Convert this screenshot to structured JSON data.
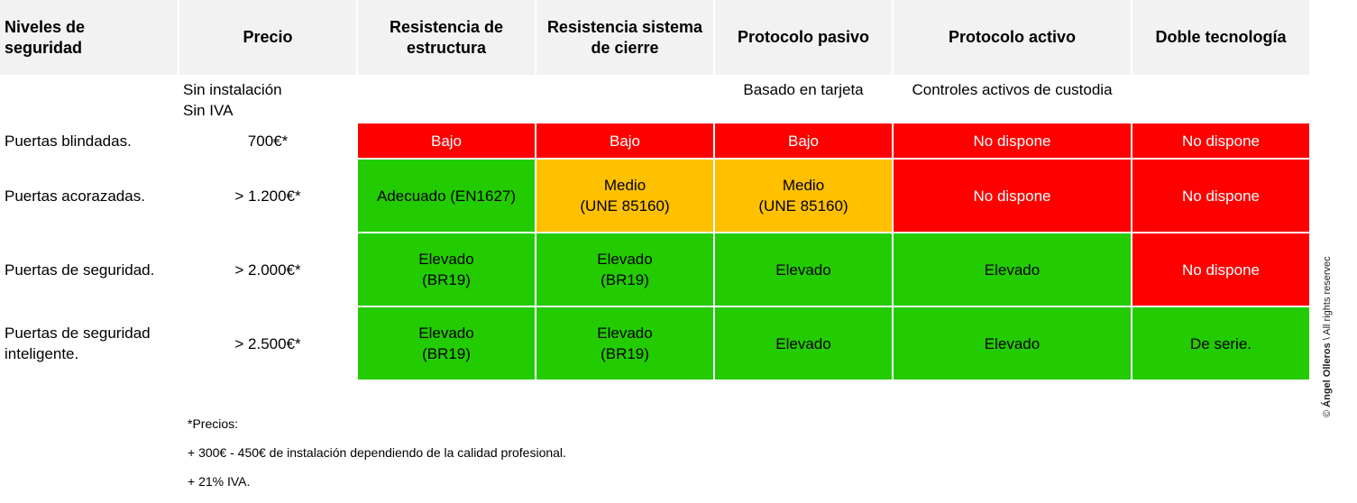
{
  "headers": {
    "level": "Niveles de\nseguridad",
    "price": "Precio",
    "structure": "Resistencia de\nestructura",
    "lock": "Resistencia sistema\nde cierre",
    "passive": "Protocolo pasivo",
    "active": "Protocolo activo",
    "dual": "Doble tecnología"
  },
  "subheaders": {
    "price": "Sin instalación\nSin IVA",
    "passive": "Basado en tarjeta",
    "active": "Controles activos de custodia"
  },
  "rows": [
    {
      "level": "Puertas blindadas.",
      "price": "700€*",
      "structure": "Bajo",
      "lock": "Bajo",
      "passive": "Bajo",
      "active": "No dispone",
      "dual": "No dispone"
    },
    {
      "level": "Puertas acorazadas.",
      "price": "> 1.200€*",
      "structure": "Adecuado (EN1627)",
      "lock": "Medio\n(UNE 85160)",
      "passive": "Medio\n(UNE 85160)",
      "active": "No dispone",
      "dual": "No dispone"
    },
    {
      "level": "Puertas de seguridad.",
      "price": "> 2.000€*",
      "structure": "Elevado\n(BR19)",
      "lock": "Elevado\n(BR19)",
      "passive": "Elevado",
      "active": "Elevado",
      "dual": "No dispone"
    },
    {
      "level": "Puertas de seguridad\ninteligente.",
      "price": "> 2.500€*",
      "structure": "Elevado\n(BR19)",
      "lock": "Elevado\n(BR19)",
      "passive": "Elevado",
      "active": "Elevado",
      "dual": "De serie."
    }
  ],
  "notes": {
    "line1": "*Precios:",
    "line2": "+ 300€ - 450€ de instalación dependiendo de la calidad profesional.",
    "line3": "+ 21% IVA."
  },
  "copyright": {
    "symbol": "© ",
    "author": "Ángel Olleros",
    "rest": " \\ All rights reservec"
  },
  "colors": {
    "header_bg": "#f2f2f2",
    "low": "#ff0000",
    "medium": "#ffc000",
    "high": "#22cc00"
  }
}
